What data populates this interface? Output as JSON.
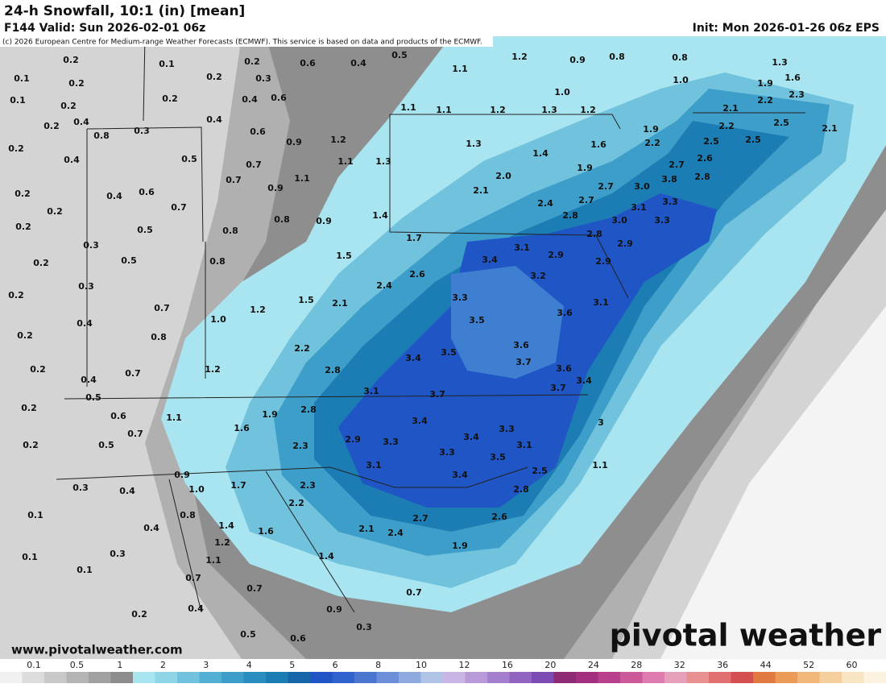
{
  "header": {
    "title": "24-h Snowfall, 10:1 (in) [mean]",
    "valid": "F144 Valid: Sun 2026-02-01 06z",
    "init": "Init: Mon 2026-01-26 06z EPS",
    "credit": "(c) 2026 European Centre for Medium-range Weather Forecasts (ECMWF). This service is based on data and products of the ECMWF."
  },
  "map": {
    "labels": [
      "0.2",
      "0.1",
      "0.2",
      "0.6",
      "0.4",
      "0.5",
      "1.2",
      "0.9",
      "0.8",
      "0.8",
      "1.3",
      "0.1",
      "0.2",
      "0.2",
      "0.3",
      "1.1",
      "1.0",
      "1.9",
      "1.6",
      "0.1",
      "0.2",
      "0.2",
      "0.4",
      "0.6",
      "1.0",
      "2.2",
      "2.3",
      "1.1",
      "1.1",
      "1.2",
      "1.3",
      "1.2",
      "2.1",
      "0.2",
      "0.4",
      "0.3",
      "0.4",
      "0.6",
      "0.8",
      "0.9",
      "1.9",
      "2.2",
      "2.5",
      "2.1",
      "0.2",
      "0.4",
      "0.5",
      "0.7",
      "1.2",
      "1.3",
      "1.4",
      "1.6",
      "2.2",
      "2.5",
      "2.5",
      "1.1",
      "1.3",
      "1.9",
      "2.6",
      "2.7",
      "0.7",
      "0.9",
      "1.1",
      "2.0",
      "2.8",
      "3.8",
      "0.2",
      "0.4",
      "0.6",
      "2.1",
      "2.7",
      "3.0",
      "0.2",
      "0.7",
      "2.4",
      "2.7",
      "3.1",
      "3.3",
      "0.8",
      "0.9",
      "1.4",
      "2.8",
      "3.0",
      "3.3",
      "0.2",
      "0.5",
      "0.8",
      "2.8",
      "1.7",
      "2.9",
      "0.3",
      "3.1",
      "2.9",
      "0.2",
      "0.5",
      "0.8",
      "1.5",
      "3.4",
      "2.9",
      "2.6",
      "3.2",
      "0.3",
      "2.4",
      "0.2",
      "1.5",
      "3.3",
      "0.7",
      "1.2",
      "2.1",
      "3.6",
      "3.1",
      "0.4",
      "1.0",
      "3.5",
      "0.2",
      "0.8",
      "2.2",
      "3.6",
      "3.5",
      "3.4",
      "3.7",
      "0.2",
      "0.7",
      "1.2",
      "2.8",
      "3.6",
      "0.4",
      "3.4",
      "3.1",
      "3.7",
      "3.7",
      "0.5",
      "0.2",
      "0.6",
      "1.1",
      "1.9",
      "2.8",
      "3.4",
      "3",
      "1.6",
      "3.3",
      "0.7",
      "2.9",
      "3.4",
      "0.2",
      "0.5",
      "2.3",
      "3.3",
      "3.1",
      "3.3",
      "3.5",
      "3.1",
      "1.1",
      "2.5",
      "0.9",
      "3.4",
      "0.3",
      "0.4",
      "1.0",
      "1.7",
      "2.3",
      "2.8",
      "2.2",
      "0.1",
      "0.8",
      "2.6",
      "2.7",
      "0.4",
      "1.4",
      "1.6",
      "2.1",
      "2.4",
      "1.2",
      "1.9",
      "0.3",
      "0.1",
      "1.1",
      "1.4",
      "0.1",
      "0.7",
      "0.7",
      "0.7",
      "0.4",
      "0.9",
      "0.2",
      "0.3",
      "0.5",
      "0.6"
    ]
  },
  "footer": {
    "url": "www.pivotalweather.com",
    "brand": "pivotal weather"
  },
  "legend": {
    "ticks": [
      "0.1",
      "0.5",
      "1",
      "2",
      "3",
      "4",
      "5",
      "6",
      "8",
      "10",
      "12",
      "16",
      "20",
      "24",
      "28",
      "32",
      "36",
      "44",
      "52",
      "60"
    ]
  }
}
